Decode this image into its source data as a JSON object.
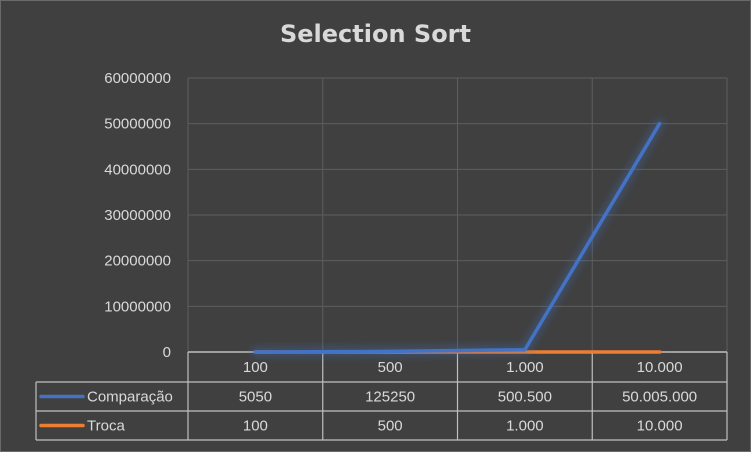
{
  "chart_data": {
    "type": "line",
    "title": "Selection Sort",
    "categories": [
      "100",
      "500",
      "1.000",
      "10.000"
    ],
    "series": [
      {
        "name": "Comparação",
        "values": [
          5050,
          125250,
          500500,
          50005000
        ],
        "labels": [
          "5050",
          "125250",
          "500.500",
          "50.005.000"
        ],
        "color": "#4472c4"
      },
      {
        "name": "Troca",
        "values": [
          100,
          500,
          1000,
          10000
        ],
        "labels": [
          "100",
          "500",
          "1.000",
          "10.000"
        ],
        "color": "#ed7d31"
      }
    ],
    "ylim": [
      0,
      60000000
    ],
    "yticks": [
      "0",
      "10000000",
      "20000000",
      "30000000",
      "40000000",
      "50000000",
      "60000000"
    ],
    "grid": true,
    "legend": "data-table"
  }
}
